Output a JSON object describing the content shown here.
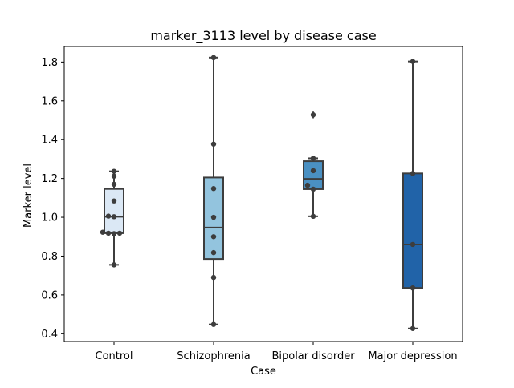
{
  "chart_data": {
    "type": "box",
    "title": "marker_3113 level by disease case",
    "xlabel": "Case",
    "ylabel": "Marker level",
    "ylim": [
      0.36,
      1.88
    ],
    "yticks": [
      "0.4",
      "0.6",
      "0.8",
      "1.0",
      "1.2",
      "1.4",
      "1.6",
      "1.8"
    ],
    "categories": [
      "Control",
      "Schizophrenia",
      "Bipolar disorder",
      "Major depression"
    ],
    "colors": [
      "#dbe8f5",
      "#93c4de",
      "#4a90c2",
      "#2163a8"
    ],
    "boxes": [
      {
        "category": "Control",
        "whisker_low": 0.755,
        "q1": 0.918,
        "median": 1.003,
        "q3": 1.146,
        "whisker_high": 1.237,
        "outliers": []
      },
      {
        "category": "Schizophrenia",
        "whisker_low": 0.448,
        "q1": 0.785,
        "median": 0.947,
        "q3": 1.205,
        "whisker_high": 1.823,
        "outliers": []
      },
      {
        "category": "Bipolar disorder",
        "whisker_low": 1.005,
        "q1": 1.145,
        "median": 1.198,
        "q3": 1.289,
        "whisker_high": 1.304,
        "outliers": [
          1.528
        ]
      },
      {
        "category": "Major depression",
        "whisker_low": 0.427,
        "q1": 0.636,
        "median": 0.86,
        "q3": 1.226,
        "whisker_high": 1.803,
        "outliers": []
      }
    ],
    "points": [
      [
        0.755,
        0.916,
        0.918,
        0.918,
        0.923,
        1.003,
        1.006,
        1.084,
        1.17,
        1.212,
        1.237
      ],
      [
        0.448,
        0.69,
        0.818,
        0.9,
        1.0,
        1.148,
        1.377,
        1.823
      ],
      [
        1.005,
        1.145,
        1.165,
        1.24,
        1.304,
        1.528
      ],
      [
        0.427,
        0.636,
        0.86,
        1.226,
        1.803
      ]
    ]
  }
}
